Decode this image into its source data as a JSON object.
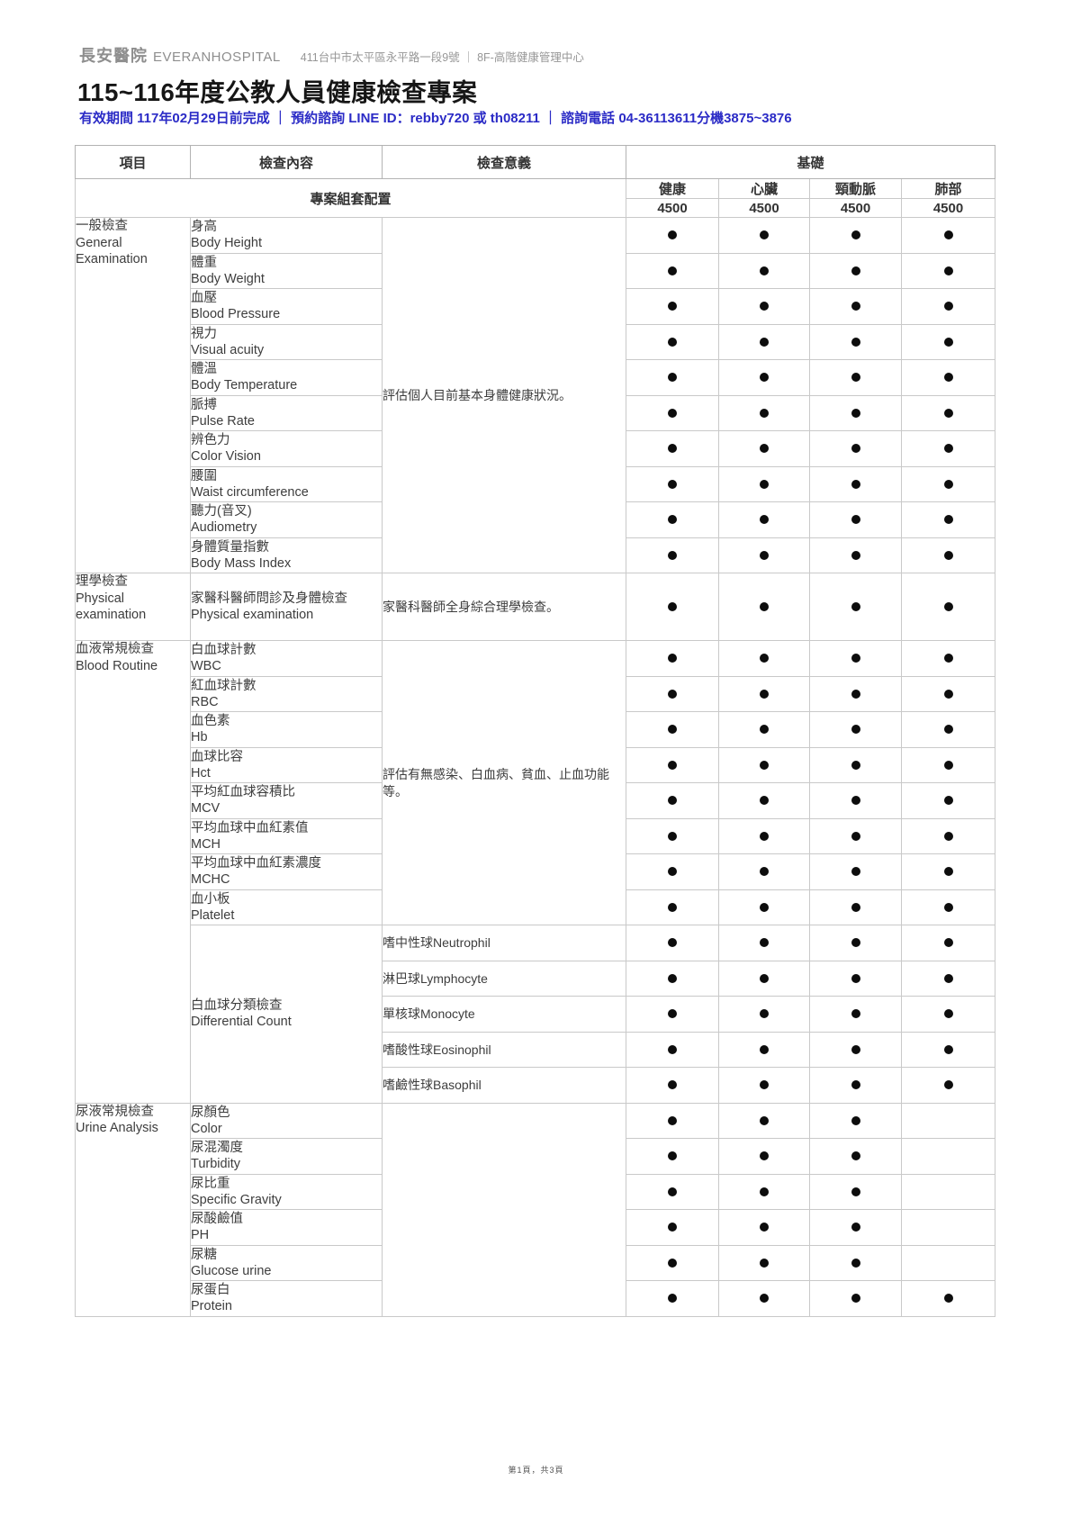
{
  "header": {
    "hospital_zh": "長安醫院",
    "hospital_en": "EVERANHOSPITAL",
    "address": "411台中市太平區永平路一段9號 ｜ 8F-高階健康管理中心"
  },
  "title": "115~116年度公教人員健康檢查專案",
  "subtitle": "有效期間 117年02月29日前完成 ｜ 預約諮詢 LINE ID：rebby720 或 th08211 ｜ 諮詢電話 04-36113611分機3875~3876",
  "footer": "第1頁，共3頁",
  "table": {
    "col_item": "項目",
    "col_content": "檢查內容",
    "col_meaning": "檢查意義",
    "group_header": "基礎",
    "config_label": "專案組套配置",
    "packages": [
      {
        "name": "健康",
        "price": "4500"
      },
      {
        "name": "心臟",
        "price": "4500"
      },
      {
        "name": "頸動脈",
        "price": "4500"
      },
      {
        "name": "肺部",
        "price": "4500"
      }
    ],
    "sections": [
      {
        "name_zh": "一般檢查",
        "name_en": "General Examination",
        "meaning": "評估個人目前基本身體健康狀況。",
        "rows": [
          {
            "zh": "身高",
            "en": "Body Height",
            "dots": [
              1,
              1,
              1,
              1
            ]
          },
          {
            "zh": "體重",
            "en": "Body Weight",
            "dots": [
              1,
              1,
              1,
              1
            ]
          },
          {
            "zh": "血壓",
            "en": "Blood Pressure",
            "dots": [
              1,
              1,
              1,
              1
            ]
          },
          {
            "zh": "視力",
            "en": "Visual acuity",
            "dots": [
              1,
              1,
              1,
              1
            ]
          },
          {
            "zh": "體溫",
            "en": "Body Temperature",
            "dots": [
              1,
              1,
              1,
              1
            ]
          },
          {
            "zh": "脈搏",
            "en": "Pulse Rate",
            "dots": [
              1,
              1,
              1,
              1
            ]
          },
          {
            "zh": "辨色力",
            "en": "Color Vision",
            "dots": [
              1,
              1,
              1,
              1
            ]
          },
          {
            "zh": "腰圍",
            "en": "Waist circumference",
            "dots": [
              1,
              1,
              1,
              1
            ]
          },
          {
            "zh": "聽力(音叉)",
            "en": "Audiometry",
            "dots": [
              1,
              1,
              1,
              1
            ]
          },
          {
            "zh": "身體質量指數",
            "en": "Body Mass Index",
            "dots": [
              1,
              1,
              1,
              1
            ]
          }
        ]
      },
      {
        "name_zh": "理學檢查",
        "name_en": "Physical examination",
        "meaning": "家醫科醫師全身綜合理學檢查。",
        "tall": true,
        "rows": [
          {
            "zh": "家醫科醫師問診及身體檢查",
            "en": "Physical examination",
            "dots": [
              1,
              1,
              1,
              1
            ]
          }
        ]
      },
      {
        "name_zh": "血液常規檢查",
        "name_en": "Blood Routine",
        "meaning": "評估有無感染、白血病、貧血、止血功能等。",
        "rows": [
          {
            "zh": "白血球計數",
            "en": "WBC",
            "dots": [
              1,
              1,
              1,
              1
            ]
          },
          {
            "zh": "紅血球計數",
            "en": "RBC",
            "dots": [
              1,
              1,
              1,
              1
            ]
          },
          {
            "zh": "血色素",
            "en": "Hb",
            "dots": [
              1,
              1,
              1,
              1
            ]
          },
          {
            "zh": "血球比容",
            "en": "Hct",
            "dots": [
              1,
              1,
              1,
              1
            ]
          },
          {
            "zh": "平均紅血球容積比",
            "en": "MCV",
            "dots": [
              1,
              1,
              1,
              1
            ]
          },
          {
            "zh": "平均血球中血紅素值",
            "en": "MCH",
            "dots": [
              1,
              1,
              1,
              1
            ]
          },
          {
            "zh": "平均血球中血紅素濃度",
            "en": "MCHC",
            "dots": [
              1,
              1,
              1,
              1
            ]
          },
          {
            "zh": "血小板",
            "en": "Platelet",
            "dots": [
              1,
              1,
              1,
              1
            ]
          }
        ],
        "subgroup": {
          "zh": "白血球分類檢查",
          "en": "Differential Count",
          "rows": [
            {
              "label": "嗜中性球Neutrophil",
              "dots": [
                1,
                1,
                1,
                1
              ]
            },
            {
              "label": "淋巴球Lymphocyte",
              "dots": [
                1,
                1,
                1,
                1
              ]
            },
            {
              "label": "單核球Monocyte",
              "dots": [
                1,
                1,
                1,
                1
              ]
            },
            {
              "label": "嗜酸性球Eosinophil",
              "dots": [
                1,
                1,
                1,
                1
              ]
            },
            {
              "label": "嗜鹼性球Basophil",
              "dots": [
                1,
                1,
                1,
                1
              ]
            }
          ]
        }
      },
      {
        "name_zh": "尿液常規檢查",
        "name_en": "Urine Analysis",
        "meaning": "",
        "rows": [
          {
            "zh": "尿顏色",
            "en": "Color",
            "dots": [
              1,
              1,
              1,
              0
            ]
          },
          {
            "zh": "尿混濁度",
            "en": "Turbidity",
            "dots": [
              1,
              1,
              1,
              0
            ]
          },
          {
            "zh": "尿比重",
            "en": "Specific Gravity",
            "dots": [
              1,
              1,
              1,
              0
            ]
          },
          {
            "zh": "尿酸鹼值",
            "en": "PH",
            "dots": [
              1,
              1,
              1,
              0
            ]
          },
          {
            "zh": "尿糖",
            "en": "Glucose urine",
            "dots": [
              1,
              1,
              1,
              0
            ]
          },
          {
            "zh": "尿蛋白",
            "en": "Protein",
            "dots": [
              1,
              1,
              1,
              1
            ]
          }
        ]
      }
    ]
  }
}
